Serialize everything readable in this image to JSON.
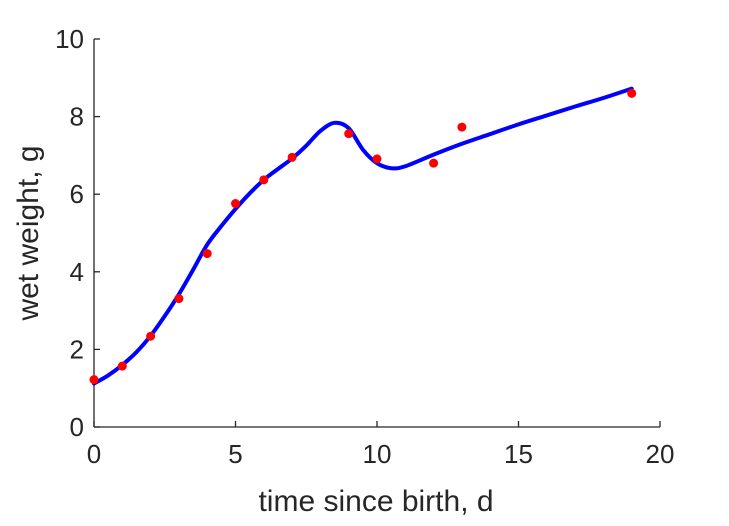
{
  "chart_data": {
    "type": "line",
    "title": "",
    "xlabel": "time since birth, d",
    "ylabel": "wet weight, g",
    "xlim": [
      0,
      20
    ],
    "ylim": [
      0,
      10
    ],
    "xticks": [
      0,
      5,
      10,
      15,
      20
    ],
    "yticks": [
      0,
      2,
      4,
      6,
      8,
      10
    ],
    "grid": false,
    "box": false,
    "colors": {
      "axis": "#262626",
      "model": "#0000ff",
      "observations": "#ff0000"
    },
    "series": [
      {
        "type": "scatter",
        "x": [
          0,
          1,
          2,
          3,
          4,
          5,
          6,
          7,
          9,
          10,
          12,
          13,
          19
        ],
        "y": [
          1.22,
          1.57,
          2.34,
          3.31,
          4.47,
          5.76,
          6.37,
          6.95,
          7.56,
          6.91,
          6.8,
          7.73,
          8.6
        ]
      },
      {
        "type": "line",
        "x": [
          0,
          0.5,
          1,
          1.5,
          2,
          2.5,
          3,
          3.5,
          4,
          4.5,
          5,
          5.5,
          6,
          6.5,
          7,
          7.5,
          8,
          8.5,
          9,
          9.5,
          10,
          10.5,
          11,
          12,
          13,
          14,
          15,
          16,
          17,
          18,
          19
        ],
        "y": [
          1.12,
          1.33,
          1.6,
          1.93,
          2.35,
          2.86,
          3.42,
          4.05,
          4.7,
          5.18,
          5.62,
          6.02,
          6.37,
          6.65,
          6.92,
          7.25,
          7.63,
          7.84,
          7.7,
          7.15,
          6.8,
          6.67,
          6.72,
          7.02,
          7.3,
          7.55,
          7.8,
          8.03,
          8.26,
          8.48,
          8.72
        ]
      }
    ]
  }
}
